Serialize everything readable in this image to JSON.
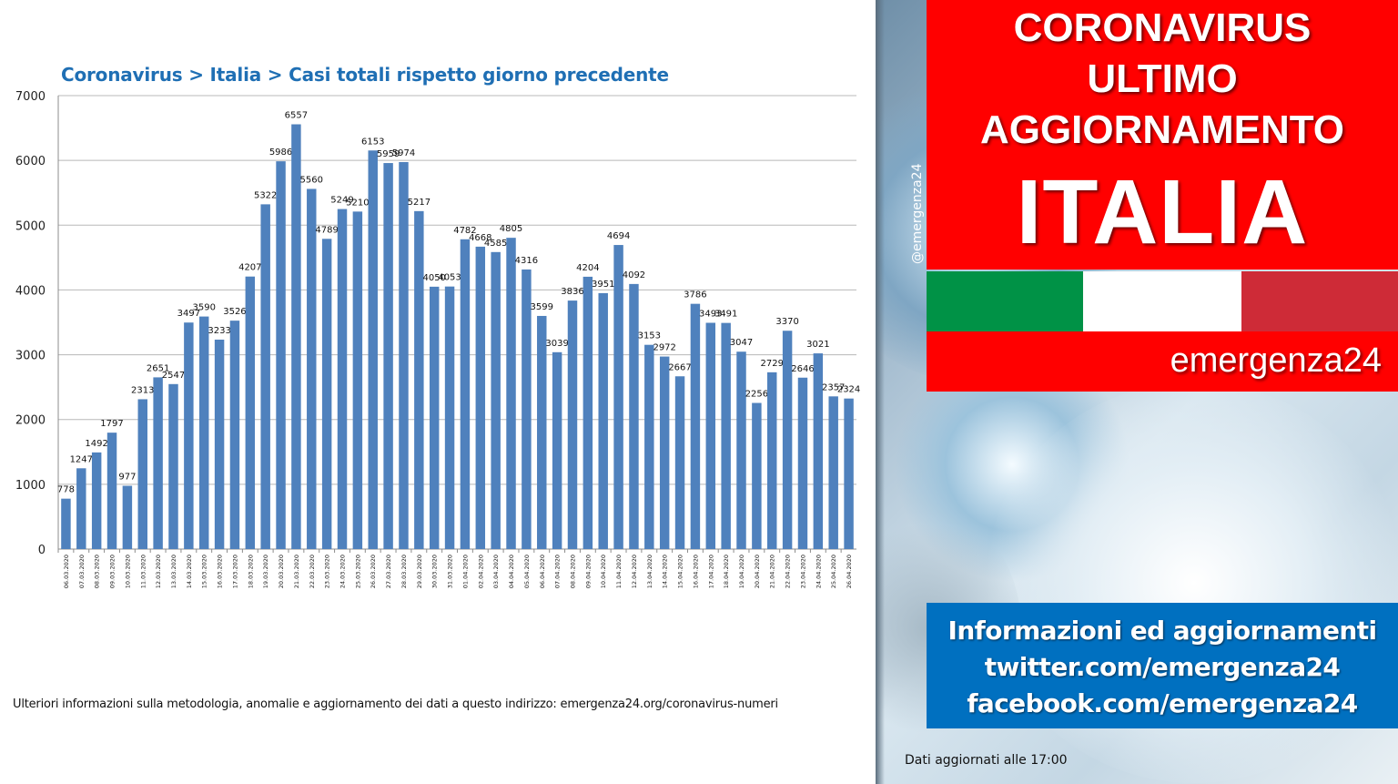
{
  "chart_data": {
    "type": "bar",
    "title": "Coronavirus > Italia > Casi totali rispetto giorno precedente",
    "ylim": [
      0,
      7000
    ],
    "yticks": [
      0,
      1000,
      2000,
      3000,
      4000,
      5000,
      6000,
      7000
    ],
    "grid": true,
    "bar_color": "#4f81bd",
    "categories": [
      "06.03.2020",
      "07.03.2020",
      "08.03.2020",
      "09.03.2020",
      "10.03.2020",
      "11.03.2020",
      "12.03.2020",
      "13.03.2020",
      "14.03.2020",
      "15.03.2020",
      "16.03.2020",
      "17.03.2020",
      "18.03.2020",
      "19.03.2020",
      "20.03.2020",
      "21.03.2020",
      "22.03.2020",
      "23.03.2020",
      "24.03.2020",
      "25.03.2020",
      "26.03.2020",
      "27.03.2020",
      "28.03.2020",
      "29.03.2020",
      "30.03.2020",
      "31.03.2020",
      "01.04.2020",
      "02.04.2020",
      "03.04.2020",
      "04.04.2020",
      "05.04.2020",
      "06.04.2020",
      "07.04.2020",
      "08.04.2020",
      "09.04.2020",
      "10.04.2020",
      "11.04.2020",
      "12.04.2020",
      "13.04.2020",
      "14.04.2020",
      "15.04.2020",
      "16.04.2020",
      "17.04.2020",
      "18.04.2020",
      "19.04.2020",
      "20.04.2020",
      "21.04.2020",
      "22.04.2020",
      "23.04.2020",
      "24.04.2020",
      "25.04.2020",
      "26.04.2020"
    ],
    "values": [
      778,
      1247,
      1492,
      1797,
      977,
      2313,
      2651,
      2547,
      3497,
      3590,
      3233,
      3526,
      4207,
      5322,
      5986,
      6557,
      5560,
      4789,
      5249,
      5210,
      6153,
      5959,
      5974,
      5217,
      4050,
      4053,
      4782,
      4668,
      4585,
      4805,
      4316,
      3599,
      3039,
      3836,
      4204,
      3951,
      4694,
      4092,
      3153,
      2972,
      2667,
      3786,
      3493,
      3491,
      3047,
      2256,
      2729,
      3370,
      2646,
      3021,
      2357,
      2324
    ]
  },
  "footnote": "Ulteriori informazioni sulla metodologia, anomalie e aggiornamento dei dati a questo indirizzo: emergenza24.org/coronavirus-numeri",
  "panel": {
    "handle": "@emergenza24",
    "headline": [
      "CORONAVIRUS",
      "ULTIMO",
      "AGGIORNAMENTO",
      "ITALIA"
    ],
    "brand": "emergenza24",
    "info_lines": [
      "Informazioni ed aggiornamenti",
      "twitter.com/emergenza24",
      "facebook.com/emergenza24"
    ],
    "updated": "Dati aggiornati alle 17:00",
    "colors": {
      "red": "#ff0000",
      "blue": "#0070c0",
      "flag_green": "#009246",
      "flag_white": "#ffffff",
      "flag_red": "#ce2b37"
    }
  }
}
